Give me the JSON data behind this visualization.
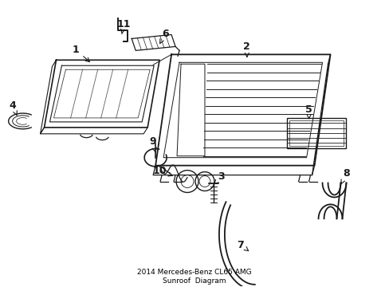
{
  "title": "2014 Mercedes-Benz CL65 AMG\nSunroof  Diagram",
  "background_color": "#ffffff",
  "line_color": "#1a1a1a",
  "label_color": "#000000",
  "figsize": [
    4.89,
    3.6
  ],
  "dpi": 100
}
